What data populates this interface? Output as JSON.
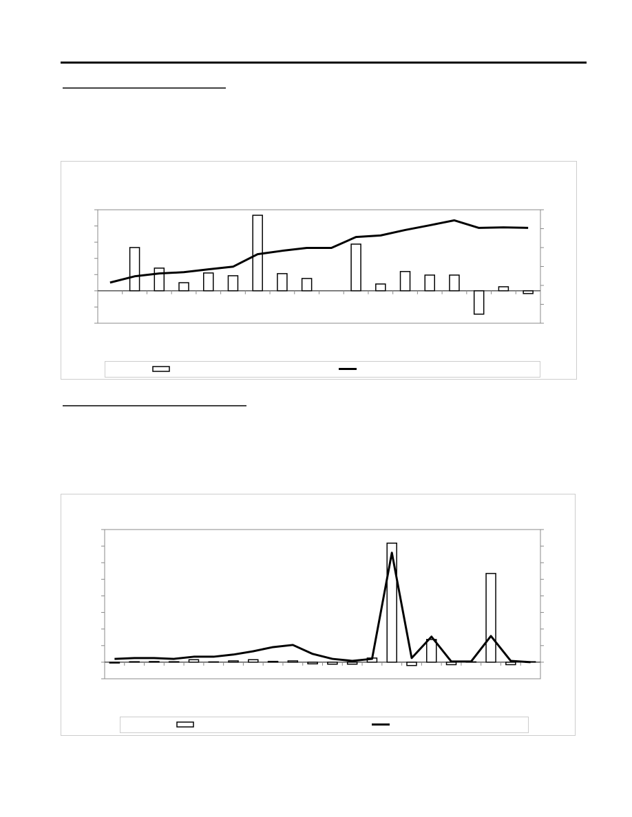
{
  "chart_data": [
    {
      "type": "bar_line",
      "series": [
        {
          "type": "bar",
          "color": "#ffffff",
          "values": [
            0,
            2.67,
            1.4,
            0.5,
            1.1,
            0.93,
            4.66,
            1.06,
            0.76,
            0,
            2.88,
            0.42,
            1.19,
            0.97,
            0.97,
            -1.44,
            0.25,
            -0.17
          ]
        },
        {
          "type": "line",
          "axis": "y2",
          "color": "#000000",
          "values": [
            2.15,
            2.48,
            2.63,
            2.7,
            2.85,
            2.99,
            3.65,
            3.83,
            3.98,
            3.98,
            4.56,
            4.64,
            4.93,
            5.18,
            5.44,
            5.04,
            5.07,
            5.04
          ]
        }
      ],
      "ylim": [
        -2,
        5
      ],
      "yticks": [
        -2,
        -1,
        0,
        1,
        2,
        3,
        4,
        5
      ],
      "y2lim": [
        0,
        6
      ],
      "y2ticks": [
        0,
        1,
        2,
        3,
        4,
        5,
        6
      ]
    },
    {
      "type": "bar_line",
      "series": [
        {
          "type": "bar",
          "color": "#ffffff",
          "values": [
            -0.05,
            0.03,
            0.04,
            0.03,
            0.15,
            0.02,
            0.08,
            0.15,
            0.05,
            0.08,
            -0.1,
            -0.12,
            -0.12,
            0.25,
            7.18,
            -0.2,
            1.37,
            -0.15,
            0.02,
            5.35,
            -0.15,
            0.03
          ]
        },
        {
          "type": "line",
          "axis": "y2",
          "color": "#000000",
          "values": [
            0.2,
            0.25,
            0.25,
            0.2,
            0.33,
            0.33,
            0.46,
            0.66,
            0.91,
            1.04,
            0.5,
            0.2,
            0.08,
            0.2,
            6.6,
            0.25,
            1.54,
            0.04,
            0.04,
            1.58,
            0.08,
            0
          ]
        }
      ],
      "ylim": [
        -1,
        8
      ],
      "yticks": [
        -1,
        0,
        1,
        2,
        3,
        4,
        5,
        6,
        7,
        8
      ],
      "y2lim": [
        -1,
        8
      ],
      "y2ticks": [
        0,
        1,
        2,
        3,
        4,
        5,
        6,
        7,
        8
      ]
    }
  ]
}
